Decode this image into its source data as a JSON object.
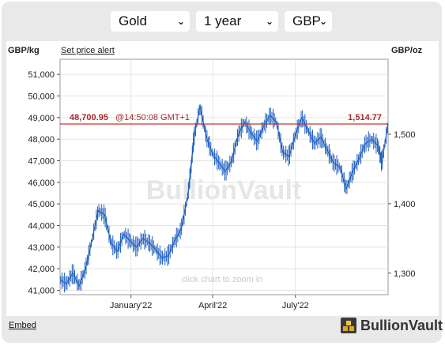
{
  "controls": {
    "metal": "Gold",
    "period": "1 year",
    "currency": "GBP"
  },
  "header": {
    "left_unit": "GBP/kg",
    "alert_link": "Set price alert",
    "right_unit": "GBP/oz"
  },
  "footer": {
    "embed": "Embed",
    "brand": "BullionVault"
  },
  "colors": {
    "price_line": "#1f5fbf",
    "current_price_line": "#c0392b",
    "grid": "#e4e4e4",
    "watermark": "#e6e6e6",
    "hint": "#c8c8c8"
  },
  "chart_data": {
    "type": "line",
    "watermark": "BullionVault",
    "hint": "click chart to zoom in",
    "current": {
      "kg_label": "48,700.95",
      "time_label": "@14:50:08 GMT+1",
      "oz_label": "1,514.77",
      "value": 48700.95
    },
    "left_axis": {
      "unit": "GBP/kg",
      "range": [
        40800,
        51700
      ],
      "ticks": [
        "41,000",
        "42,000",
        "43,000",
        "44,000",
        "45,000",
        "46,000",
        "47,000",
        "48,000",
        "49,000",
        "50,000",
        "51,000"
      ],
      "tick_values": [
        41000,
        42000,
        43000,
        44000,
        45000,
        46000,
        47000,
        48000,
        49000,
        50000,
        51000
      ]
    },
    "right_axis": {
      "unit": "GBP/oz",
      "ticks": [
        "1,300",
        "1,400",
        "1,500"
      ],
      "tick_values": [
        1300,
        1400,
        1500
      ]
    },
    "x_axis": {
      "range": [
        "2021-10-15",
        "2022-10-11"
      ],
      "tick_labels": [
        "January'22",
        "April'22",
        "July'22"
      ],
      "tick_dates": [
        "2022-01-01",
        "2022-04-01",
        "2022-07-01"
      ]
    },
    "series": [
      {
        "x": [
          "2021-10-15",
          "2021-10-22",
          "2021-10-29",
          "2021-11-05",
          "2021-11-12",
          "2021-11-19",
          "2021-11-26",
          "2021-12-03",
          "2021-12-10",
          "2021-12-17",
          "2021-12-24",
          "2021-12-31",
          "2022-01-07",
          "2022-01-14",
          "2022-01-21",
          "2022-01-28",
          "2022-02-04",
          "2022-02-11",
          "2022-02-18",
          "2022-02-25",
          "2022-03-04",
          "2022-03-08",
          "2022-03-11",
          "2022-03-18",
          "2022-03-25",
          "2022-04-01",
          "2022-04-08",
          "2022-04-15",
          "2022-04-22",
          "2022-04-29",
          "2022-05-06",
          "2022-05-13",
          "2022-05-20",
          "2022-05-27",
          "2022-06-03",
          "2022-06-10",
          "2022-06-17",
          "2022-06-24",
          "2022-07-01",
          "2022-07-08",
          "2022-07-15",
          "2022-07-22",
          "2022-07-29",
          "2022-08-05",
          "2022-08-12",
          "2022-08-19",
          "2022-08-26",
          "2022-09-02",
          "2022-09-09",
          "2022-09-16",
          "2022-09-23",
          "2022-09-30",
          "2022-10-04",
          "2022-10-11"
        ],
        "values": [
          41500,
          41300,
          41800,
          41200,
          42000,
          43300,
          44700,
          44500,
          43200,
          42800,
          43600,
          43300,
          43000,
          43400,
          43200,
          42900,
          42500,
          42600,
          43300,
          43800,
          45200,
          46600,
          48000,
          49500,
          48100,
          47300,
          46900,
          46500,
          47000,
          48200,
          48800,
          48300,
          47900,
          48600,
          49100,
          48800,
          47400,
          47200,
          48200,
          49000,
          48400,
          47800,
          48100,
          47500,
          46900,
          46700,
          45700,
          46500,
          47100,
          47800,
          48000,
          47700,
          46900,
          48700
        ]
      }
    ]
  }
}
